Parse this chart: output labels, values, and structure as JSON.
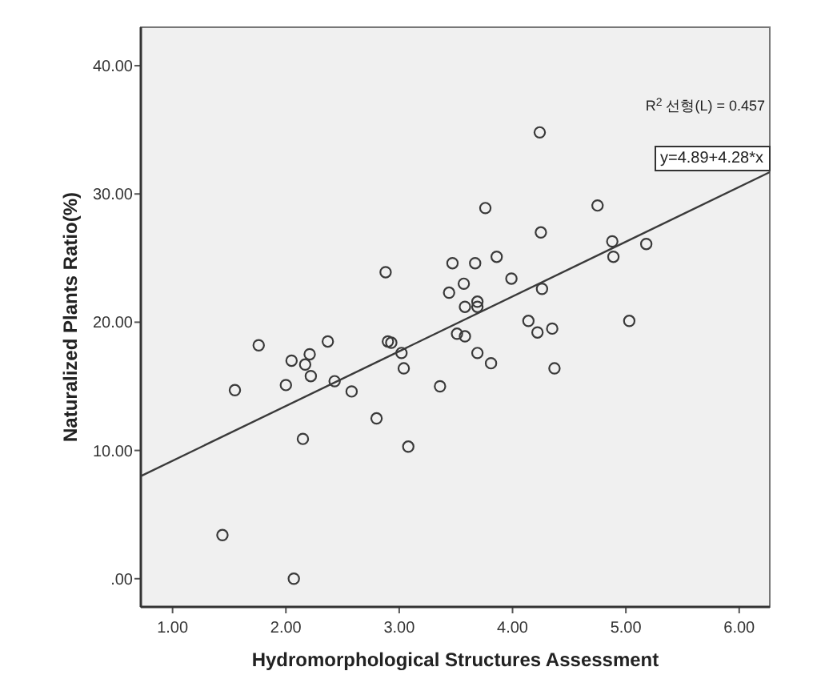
{
  "chart_data": {
    "type": "scatter",
    "xlabel": "Hydromorphological Structures Assessment",
    "ylabel": "Naturalized Plants Ratio(%)",
    "xlim": [
      0.72,
      6.27
    ],
    "ylim": [
      -2.2,
      43
    ],
    "xticks": [
      {
        "value": 1,
        "label": "1.00"
      },
      {
        "value": 2,
        "label": "2.00"
      },
      {
        "value": 3,
        "label": "3.00"
      },
      {
        "value": 4,
        "label": "4.00"
      },
      {
        "value": 5,
        "label": "5.00"
      },
      {
        "value": 6,
        "label": "6.00"
      }
    ],
    "yticks": [
      {
        "value": 0,
        "label": ".00"
      },
      {
        "value": 10,
        "label": "10.00"
      },
      {
        "value": 20,
        "label": "20.00"
      },
      {
        "value": 30,
        "label": "30.00"
      },
      {
        "value": 40,
        "label": "40.00"
      }
    ],
    "grid": false,
    "series": [
      {
        "marker": "circle",
        "color": "#3a3a3a",
        "x": [
          1.76,
          1.55,
          1.44,
          2.07,
          2.05,
          2.0,
          2.17,
          2.21,
          2.22,
          2.15,
          2.37,
          2.43,
          2.58,
          2.8,
          2.9,
          2.93,
          3.02,
          3.04,
          3.08,
          3.36,
          2.88,
          3.44,
          4.24,
          3.76,
          4.75,
          4.25,
          4.88,
          5.18,
          4.89,
          3.47,
          3.67,
          3.86,
          3.57,
          3.99,
          3.58,
          3.69,
          3.69,
          4.26,
          4.14,
          4.22,
          4.35,
          5.03,
          3.51,
          3.58,
          3.69,
          3.81,
          4.37
        ],
        "values": [
          18.2,
          14.7,
          3.4,
          0,
          17.0,
          15.1,
          16.7,
          17.5,
          15.8,
          10.9,
          18.5,
          15.4,
          14.6,
          12.5,
          18.5,
          18.4,
          17.6,
          16.4,
          10.3,
          15.0,
          23.9,
          22.3,
          34.8,
          28.9,
          29.1,
          27.0,
          26.3,
          26.1,
          25.1,
          24.6,
          24.6,
          25.1,
          23.0,
          23.4,
          21.2,
          21.6,
          21.2,
          22.6,
          20.1,
          19.2,
          19.5,
          20.1,
          19.1,
          18.9,
          17.6,
          16.8,
          16.4
        ]
      },
      {
        "type": "line",
        "marker": "none",
        "color": "#3a3a3a",
        "x": [
          0.72,
          6.27
        ],
        "values": [
          8.0,
          31.7
        ]
      }
    ],
    "annotations": [
      "R$^{2}$ 선형(L) = 0.457",
      {
        "text": "y=4.89+4.28*x",
        "x": 6.27,
        "y": 31.7
      }
    ]
  }
}
